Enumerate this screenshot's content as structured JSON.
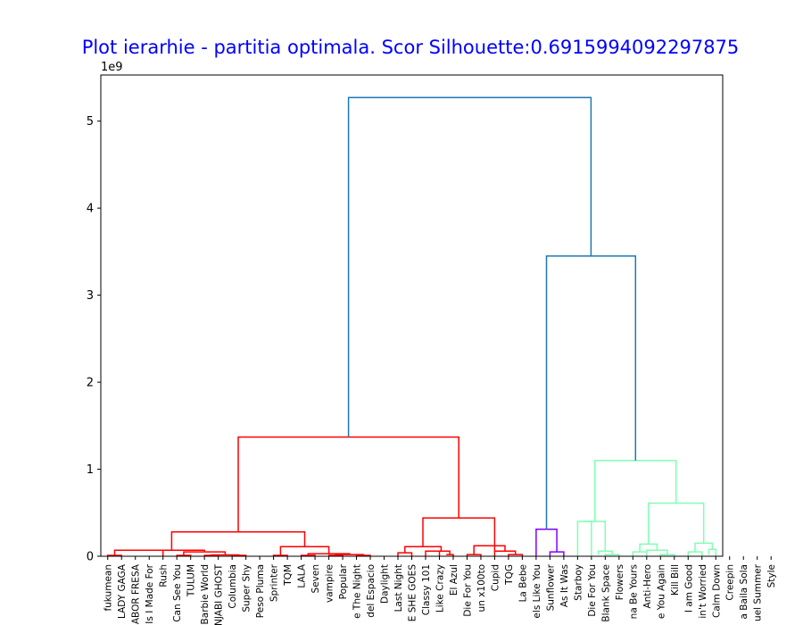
{
  "colors": {
    "title": "#0000ff",
    "root": "#1f77b4",
    "cluster_red": "#ff0000",
    "cluster_purple": "#8000ff",
    "cluster_green": "#80ffb4"
  },
  "chart_data": {
    "type": "dendrogram",
    "title": "Plot ierarhie - partitia optimala. Scor Silhouette:0.6915994092297875",
    "y_multiplier_label": "1e9",
    "ylim": [
      0,
      5.53
    ],
    "xlim": [
      0,
      450
    ],
    "yticks": [
      0,
      1,
      2,
      3,
      4,
      5
    ],
    "ytick_labels": [
      "0",
      "1",
      "2",
      "3",
      "4",
      "5"
    ],
    "leaves": [
      "fukumean",
      "LADY GAGA",
      "SABOR FRESA",
      "Is I Made For",
      "Rush",
      "Can See You",
      "TULUM",
      "Barbie World",
      "PUNJABI GHOST",
      "Columbia",
      "Super Shy",
      "Peso Pluma",
      "Sprinter",
      "TQM",
      "LALA",
      "Seven",
      "vampire",
      "Popular",
      "e The Night",
      "del Espacio",
      "Daylight",
      "Last Night",
      "E SHE GOES",
      "Classy 101",
      "Like Crazy",
      "El Azul",
      "Die For You",
      "un x100to",
      "Cupid",
      "TQG",
      "La Bebe",
      "els Like You",
      "Sunflower",
      "As It Was",
      "Starboy",
      "Die For You",
      "Blank Space",
      "Flowers",
      "na Be Yours",
      "Anti-Hero",
      "e You Again",
      "Kill Bill",
      "I am Good",
      "in't Worried",
      "Calm Down",
      "Creepin",
      "a Baila Sola",
      "uel Summer",
      "Style"
    ],
    "links": [
      {
        "x": [
          5,
          5,
          15,
          15
        ],
        "y": [
          0,
          0.01,
          0.01,
          0
        ],
        "color": "red"
      },
      {
        "x": [
          10,
          10,
          45,
          45
        ],
        "y": [
          0.01,
          0.07,
          0.07,
          0
        ],
        "color": "red"
      },
      {
        "x": [
          55,
          55,
          65,
          65
        ],
        "y": [
          0,
          0.01,
          0.01,
          0
        ],
        "color": "red"
      },
      {
        "x": [
          75,
          75,
          85,
          85
        ],
        "y": [
          0,
          0.01,
          0.01,
          0
        ],
        "color": "red"
      },
      {
        "x": [
          95,
          95,
          105,
          105
        ],
        "y": [
          0,
          0.01,
          0.01,
          0
        ],
        "color": "red"
      },
      {
        "x": [
          80,
          80,
          100,
          100
        ],
        "y": [
          0.01,
          0.015,
          0.015,
          0.01
        ],
        "color": "red"
      },
      {
        "x": [
          60,
          60,
          90,
          90
        ],
        "y": [
          0.01,
          0.05,
          0.05,
          0.015
        ],
        "color": "red"
      },
      {
        "x": [
          27.5,
          27.5,
          75,
          75
        ],
        "y": [
          0.07,
          0.07,
          0.07,
          0.05
        ],
        "color": "red"
      },
      {
        "x": [
          125,
          125,
          135,
          135
        ],
        "y": [
          0,
          0.01,
          0.01,
          0
        ],
        "color": "red"
      },
      {
        "x": [
          145,
          145,
          155,
          155
        ],
        "y": [
          0,
          0.01,
          0.01,
          0
        ],
        "color": "red"
      },
      {
        "x": [
          165,
          165,
          175,
          175
        ],
        "y": [
          0,
          0.01,
          0.01,
          0
        ],
        "color": "red"
      },
      {
        "x": [
          185,
          185,
          195,
          195
        ],
        "y": [
          0,
          0.01,
          0.01,
          0
        ],
        "color": "red"
      },
      {
        "x": [
          170,
          170,
          190,
          190
        ],
        "y": [
          0.01,
          0.02,
          0.02,
          0.01
        ],
        "color": "red"
      },
      {
        "x": [
          150,
          150,
          180,
          180
        ],
        "y": [
          0.01,
          0.03,
          0.03,
          0.02
        ],
        "color": "red"
      },
      {
        "x": [
          130,
          130,
          165,
          165
        ],
        "y": [
          0.01,
          0.11,
          0.11,
          0.03
        ],
        "color": "red"
      },
      {
        "x": [
          51.25,
          51.25,
          147.5,
          147.5
        ],
        "y": [
          0.07,
          0.28,
          0.28,
          0.11
        ],
        "color": "red"
      },
      {
        "x": [
          215,
          215,
          225,
          225
        ],
        "y": [
          0,
          0.04,
          0.04,
          0
        ],
        "color": "red"
      },
      {
        "x": [
          235,
          235,
          245,
          245
        ],
        "y": [
          0,
          0.06,
          0.06,
          0
        ],
        "color": "red"
      },
      {
        "x": [
          250,
          250,
          255,
          255
        ],
        "y": [
          0.02,
          0.02,
          0.02,
          0
        ],
        "color": "red"
      },
      {
        "x": [
          240,
          240,
          252.5,
          252.5
        ],
        "y": [
          0.06,
          0.06,
          0.06,
          0.02
        ],
        "color": "red"
      },
      {
        "x": [
          220,
          220,
          246.25,
          246.25
        ],
        "y": [
          0.04,
          0.11,
          0.11,
          0.06
        ],
        "color": "red"
      },
      {
        "x": [
          265,
          265,
          275,
          275
        ],
        "y": [
          0,
          0.02,
          0.02,
          0
        ],
        "color": "red"
      },
      {
        "x": [
          270,
          270,
          285,
          285
        ],
        "y": [
          0.02,
          0.12,
          0.12,
          0
        ],
        "color": "red"
      },
      {
        "x": [
          295,
          295,
          305,
          305
        ],
        "y": [
          0,
          0.02,
          0.02,
          0
        ],
        "color": "red"
      },
      {
        "x": [
          285,
          285,
          300,
          300
        ],
        "y": [
          0.06,
          0.06,
          0.06,
          0.02
        ],
        "color": "red"
      },
      {
        "x": [
          277.5,
          277.5,
          292.5,
          292.5
        ],
        "y": [
          0.12,
          0.12,
          0.12,
          0.06
        ],
        "color": "red"
      },
      {
        "x": [
          233.1,
          233.1,
          285,
          285
        ],
        "y": [
          0.11,
          0.44,
          0.44,
          0.12
        ],
        "color": "red"
      },
      {
        "x": [
          99.4,
          99.4,
          259,
          259
        ],
        "y": [
          0.28,
          1.37,
          1.37,
          0.44
        ],
        "color": "red"
      },
      {
        "x": [
          325,
          325,
          335,
          335
        ],
        "y": [
          0,
          0.05,
          0.05,
          0
        ],
        "color": "purple"
      },
      {
        "x": [
          315,
          315,
          330,
          330
        ],
        "y": [
          0,
          0.31,
          0.31,
          0.05
        ],
        "color": "purple"
      },
      {
        "x": [
          345,
          345,
          355,
          355
        ],
        "y": [
          0,
          0.4,
          0.4,
          0
        ],
        "color": "green"
      },
      {
        "x": [
          365,
          365,
          375,
          375
        ],
        "y": [
          0,
          0.02,
          0.02,
          0
        ],
        "color": "green"
      },
      {
        "x": [
          360,
          360,
          370,
          370
        ],
        "y": [
          0.02,
          0.06,
          0.06,
          0.02
        ],
        "color": "green"
      },
      {
        "x": [
          350,
          350,
          365,
          365
        ],
        "y": [
          0.4,
          0.4,
          0.4,
          0.06
        ],
        "color": "green"
      },
      {
        "x": [
          385,
          385,
          395,
          395
        ],
        "y": [
          0,
          0.05,
          0.05,
          0
        ],
        "color": "green"
      },
      {
        "x": [
          405,
          405,
          415,
          415
        ],
        "y": [
          0,
          0.02,
          0.02,
          0
        ],
        "color": "green"
      },
      {
        "x": [
          395,
          395,
          410,
          410
        ],
        "y": [
          0.05,
          0.07,
          0.07,
          0.02
        ],
        "color": "green"
      },
      {
        "x": [
          390,
          390,
          402.5,
          402.5
        ],
        "y": [
          0.05,
          0.14,
          0.14,
          0.07
        ],
        "color": "green"
      },
      {
        "x": [
          425,
          425,
          435,
          435
        ],
        "y": [
          0,
          0.05,
          0.05,
          0
        ],
        "color": "green"
      },
      {
        "x": [
          440,
          440,
          445,
          445
        ],
        "y": [
          0.02,
          0.08,
          0.08,
          0
        ],
        "color": "green"
      },
      {
        "x": [
          430,
          430,
          442.5,
          442.5
        ],
        "y": [
          0.05,
          0.15,
          0.15,
          0.08
        ],
        "color": "green"
      },
      {
        "x": [
          396.25,
          396.25,
          436.25,
          436.25
        ],
        "y": [
          0.14,
          0.61,
          0.61,
          0.15
        ],
        "color": "green"
      },
      {
        "x": [
          357.5,
          357.5,
          416.25,
          416.25
        ],
        "y": [
          0.4,
          1.1,
          1.1,
          0.61
        ],
        "color": "green"
      },
      {
        "x": [
          322.5,
          322.5,
          386.9,
          386.9
        ],
        "y": [
          0.31,
          3.45,
          3.45,
          1.1
        ],
        "color": "root"
      },
      {
        "x": [
          179.2,
          179.2,
          354.7,
          354.7
        ],
        "y": [
          1.37,
          5.27,
          5.27,
          3.45
        ],
        "color": "root"
      }
    ]
  }
}
